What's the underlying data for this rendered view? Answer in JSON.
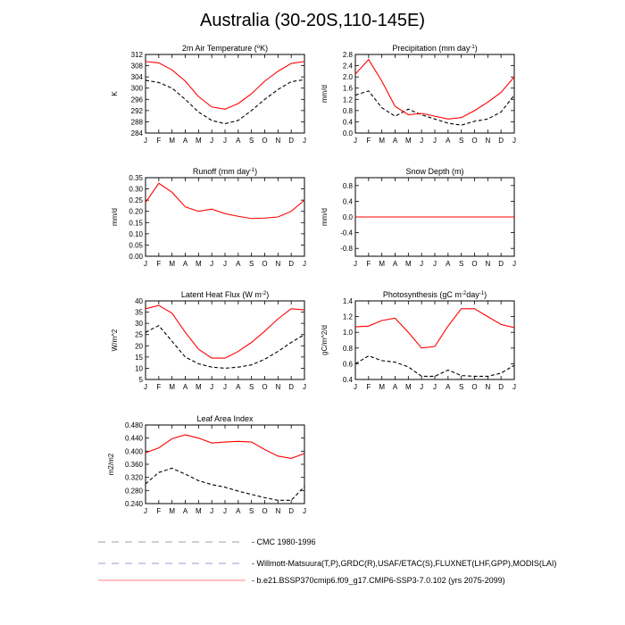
{
  "page_title": "Australia (30-20S,110-145E)",
  "months": [
    "J",
    "F",
    "M",
    "A",
    "M",
    "J",
    "J",
    "A",
    "S",
    "O",
    "N",
    "D",
    "J"
  ],
  "colors": {
    "model": "#ff0000",
    "obs": "#000000",
    "legend_dash": "#9aa0c8"
  },
  "legend": [
    {
      "label": "CMC 1980-1996",
      "color": "#a0a0a0",
      "dash": "8,7"
    },
    {
      "label": "Willmott-Matsuura(T,P),GRDC(R),USAF/ETAC(S),FLUXNET(LHF,GPP),MODIS(LAI)",
      "color": "#9a9ad8",
      "dash": "8,7"
    },
    {
      "label": "b.e21.BSSP370cmip6.f09_g17.CMIP6-SSP3-7.0.102 (yrs 2075-2099)",
      "color": "#ff8080",
      "dash": ""
    }
  ],
  "chart_data": [
    {
      "type": "line",
      "title": "2m Air Temperature (",
      "title_sup": "o",
      "title_end": "K)",
      "ylabel": "K",
      "ylim": [
        284,
        312
      ],
      "yticks": [
        "284",
        "288",
        "292",
        "296",
        "300",
        "304",
        "308",
        "312"
      ],
      "series": [
        {
          "values": [
            309.5,
            309.0,
            306.5,
            302.5,
            297.0,
            293.3,
            292.5,
            294.5,
            298.0,
            302.5,
            306.0,
            308.8,
            309.5
          ],
          "style": "solid"
        },
        {
          "values": [
            302.8,
            302.0,
            300.0,
            296.0,
            291.5,
            288.5,
            287.3,
            288.5,
            292.0,
            296.0,
            299.5,
            302.3,
            303.0
          ],
          "style": "dashed"
        }
      ]
    },
    {
      "type": "line",
      "title": "Precipitation (mm day",
      "title_sup": "-1",
      "title_end": ")",
      "ylabel": "mm/d",
      "ylim": [
        0,
        2.8
      ],
      "yticks": [
        "0.0",
        "0.4",
        "0.8",
        "1.2",
        "1.6",
        "2.0",
        "2.4",
        "2.8"
      ],
      "series": [
        {
          "values": [
            2.1,
            2.62,
            1.85,
            0.95,
            0.65,
            0.7,
            0.6,
            0.5,
            0.55,
            0.8,
            1.1,
            1.45,
            2.0
          ],
          "style": "solid"
        },
        {
          "values": [
            1.35,
            1.5,
            0.9,
            0.6,
            0.85,
            0.65,
            0.5,
            0.35,
            0.28,
            0.42,
            0.5,
            0.75,
            1.35
          ],
          "style": "dashed"
        }
      ]
    },
    {
      "type": "line",
      "title": "Runoff (mm day",
      "title_sup": "-1",
      "title_end": ")",
      "ylabel": "mm/d",
      "ylim": [
        0,
        0.35
      ],
      "yticks": [
        "0.00",
        "0.05",
        "0.10",
        "0.15",
        "0.20",
        "0.25",
        "0.30",
        "0.35"
      ],
      "series": [
        {
          "values": [
            0.24,
            0.325,
            0.285,
            0.22,
            0.2,
            0.21,
            0.19,
            0.178,
            0.168,
            0.17,
            0.175,
            0.2,
            0.25
          ],
          "style": "solid"
        }
      ]
    },
    {
      "type": "line",
      "title": "Snow Depth (m)",
      "title_sup": "",
      "title_end": "",
      "ylabel": "mm/d",
      "ylim": [
        -1.0,
        1.0
      ],
      "yticks": [
        "-0.8",
        "-0.4",
        "0.0",
        "0.4",
        "0.8"
      ],
      "series": [
        {
          "values": [
            0,
            0,
            0,
            0,
            0,
            0,
            0,
            0,
            0,
            0,
            0,
            0,
            0
          ],
          "style": "solid"
        },
        {
          "values": [
            0,
            0,
            0,
            0,
            0,
            0,
            0,
            0,
            0,
            0,
            0,
            0,
            0
          ],
          "style": "dashed"
        }
      ]
    },
    {
      "type": "line",
      "title": "Latent Heat Flux (W m",
      "title_sup": "-2",
      "title_end": ")",
      "ylabel": "W/m^2",
      "ylim": [
        5,
        40
      ],
      "yticks": [
        "5",
        "10",
        "15",
        "20",
        "25",
        "30",
        "35",
        "40"
      ],
      "series": [
        {
          "values": [
            36.5,
            38.0,
            34.5,
            26.0,
            18.5,
            14.5,
            14.5,
            17.5,
            21.5,
            26.5,
            32.0,
            36.5,
            36.0
          ],
          "style": "solid"
        },
        {
          "values": [
            26.0,
            29.0,
            22.0,
            15.0,
            12.0,
            10.5,
            10.0,
            10.5,
            11.5,
            14.0,
            17.5,
            21.5,
            25.0
          ],
          "style": "dashed"
        }
      ]
    },
    {
      "type": "line",
      "title": "Photosynthesis (gC m",
      "title_sup": "-2",
      "title_end": "day",
      "title_sup2": "-1",
      "title_end2": ")",
      "ylabel": "gC/m^2/d",
      "ylim": [
        0.4,
        1.4
      ],
      "yticks": [
        "0.4",
        "0.6",
        "0.8",
        "1.0",
        "1.2",
        "1.4"
      ],
      "series": [
        {
          "values": [
            1.07,
            1.08,
            1.15,
            1.18,
            1.0,
            0.8,
            0.82,
            1.08,
            1.3,
            1.3,
            1.2,
            1.1,
            1.06
          ],
          "style": "solid"
        },
        {
          "values": [
            0.6,
            0.7,
            0.64,
            0.62,
            0.56,
            0.44,
            0.44,
            0.52,
            0.45,
            0.44,
            0.44,
            0.48,
            0.58
          ],
          "style": "dashed"
        }
      ]
    },
    {
      "type": "line",
      "title": "Leaf Area Index",
      "title_sup": "",
      "title_end": "",
      "ylabel": "m2/m2",
      "ylim": [
        0.24,
        0.48
      ],
      "yticks": [
        "0.240",
        "0.280",
        "0.320",
        "0.360",
        "0.400",
        "0.440",
        "0.480"
      ],
      "series": [
        {
          "values": [
            0.395,
            0.41,
            0.438,
            0.45,
            0.44,
            0.425,
            0.428,
            0.43,
            0.428,
            0.405,
            0.385,
            0.378,
            0.393
          ],
          "style": "solid"
        },
        {
          "values": [
            0.3,
            0.335,
            0.348,
            0.33,
            0.31,
            0.298,
            0.29,
            0.278,
            0.268,
            0.258,
            0.25,
            0.25,
            0.292
          ],
          "style": "dashed"
        }
      ]
    }
  ]
}
